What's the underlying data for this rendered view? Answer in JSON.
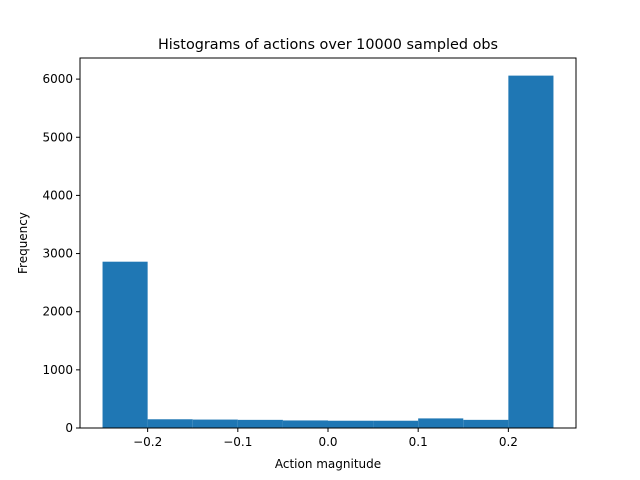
{
  "chart_data": {
    "type": "bar",
    "title": "Histograms of actions over 10000 sampled obs",
    "xlabel": "Action magnitude",
    "ylabel": "Frequency",
    "bin_edges": [
      -0.25,
      -0.2,
      -0.15,
      -0.1,
      -0.05,
      0.0,
      0.05,
      0.1,
      0.15,
      0.2,
      0.25
    ],
    "values": [
      2860,
      150,
      145,
      140,
      130,
      125,
      125,
      165,
      140,
      6060
    ],
    "xlim": [
      -0.275,
      0.275
    ],
    "ylim": [
      0,
      6363
    ],
    "xticks": [
      -0.2,
      -0.1,
      0.0,
      0.1,
      0.2
    ],
    "xtick_labels": [
      "−0.2",
      "−0.1",
      "0.0",
      "0.1",
      "0.2"
    ],
    "yticks": [
      0,
      1000,
      2000,
      3000,
      4000,
      5000,
      6000
    ],
    "ytick_labels": [
      "0",
      "1000",
      "2000",
      "3000",
      "4000",
      "5000",
      "6000"
    ],
    "bar_color": "#1f77b4",
    "grid": false,
    "legend": false
  }
}
